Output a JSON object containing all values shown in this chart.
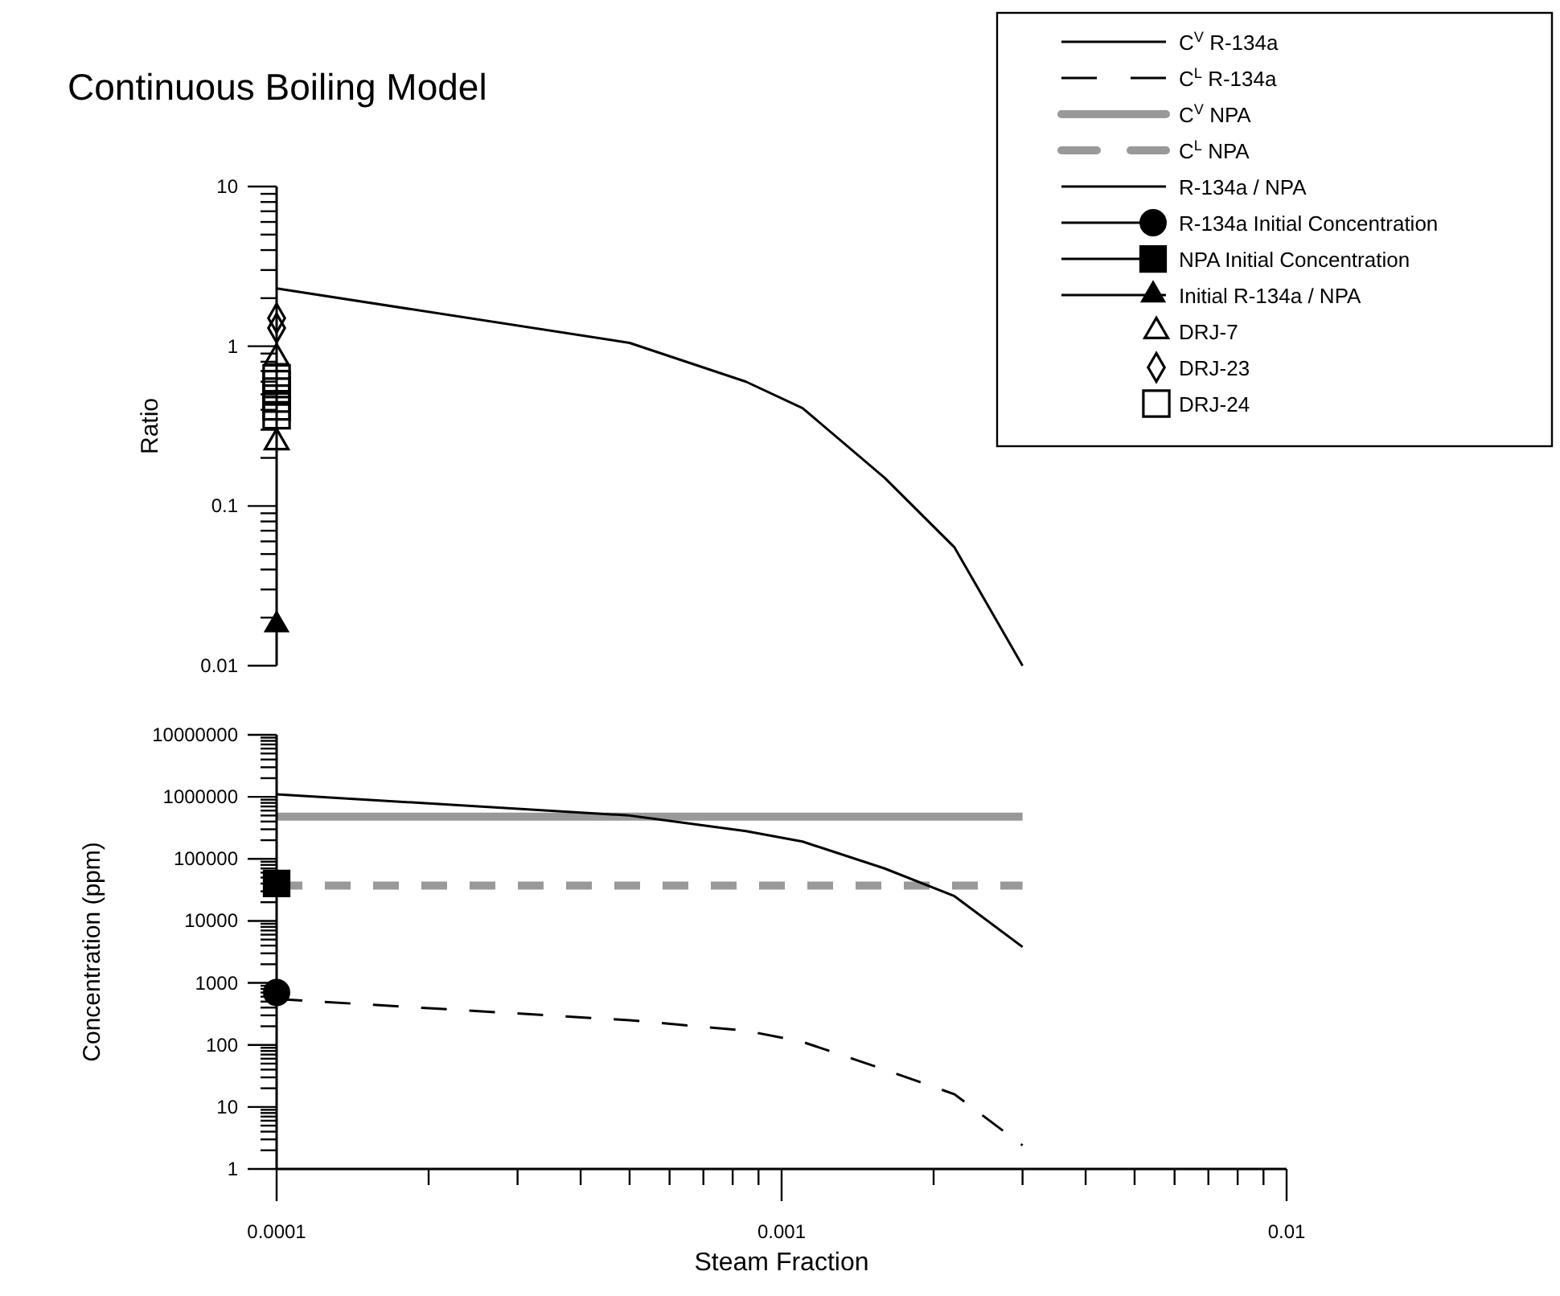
{
  "chart_data": [
    {
      "type": "line",
      "title": "Continuous Boiling Model",
      "ylabel": "Ratio",
      "log": "xy",
      "legend": "top right",
      "tick_labels": "y",
      "marker": "none",
      "line_style": "solid",
      "xlim": [
        0.0001,
        0.01
      ],
      "ylim": [
        0.01,
        10
      ],
      "yticks": [
        0.01,
        {
          "value": 0.02,
          "label": null
        },
        {
          "value": 0.03,
          "label": null
        },
        {
          "value": 0.04,
          "label": null
        },
        {
          "value": 0.05,
          "label": null
        },
        {
          "value": 0.06,
          "label": null
        },
        {
          "value": 0.07,
          "label": null
        },
        {
          "value": 0.08,
          "label": null
        },
        {
          "value": 0.09,
          "label": null
        },
        0.1,
        {
          "value": 0.2,
          "label": null
        },
        {
          "value": 0.3,
          "label": null
        },
        {
          "value": 0.4,
          "label": null
        },
        {
          "value": 0.5,
          "label": null
        },
        {
          "value": 0.6,
          "label": null
        },
        {
          "value": 0.7,
          "label": null
        },
        {
          "value": 0.8,
          "label": null
        },
        {
          "value": 0.9,
          "label": null
        },
        1,
        {
          "value": 2,
          "label": null
        },
        {
          "value": 3,
          "label": null
        },
        {
          "value": 4,
          "label": null
        },
        {
          "value": 5,
          "label": null
        },
        {
          "value": 6,
          "label": null
        },
        {
          "value": 7,
          "label": null
        },
        {
          "value": 8,
          "label": null
        },
        {
          "value": 9,
          "label": null
        },
        10
      ],
      "series": [
        {
          "name": "R-134a / NPA",
          "color": "#000000",
          "x": [
            0.0001,
            0.0005,
            0.00085,
            0.0011,
            0.0016,
            0.0022,
            0.003
          ],
          "values": [
            2.3,
            1.05,
            0.6,
            0.41,
            0.15,
            0.055,
            0.01
          ]
        },
        {
          "name": "Initial R-134a / NPA",
          "marker": "triangle",
          "color": "#000000",
          "x": [
            0.0001
          ],
          "values": [
            0.018
          ]
        },
        {
          "name": "DRJ-7",
          "type": "scatter",
          "marker": "triangle",
          "color": "#000000",
          "x": [
            0.0001,
            0.0001
          ],
          "values": [
            0.25,
            0.85
          ]
        },
        {
          "name": "DRJ-23",
          "type": "scatter",
          "marker": "diamond",
          "color": "#000000",
          "x": [
            0.0001,
            0.0001
          ],
          "values": [
            1.3,
            1.5
          ]
        },
        {
          "name": "DRJ-24",
          "type": "scatter",
          "marker": "square",
          "color": "#000000",
          "x": [
            0.0001,
            0.0001,
            0.0001,
            0.0001,
            0.0001,
            0.0001
          ],
          "values": [
            0.37,
            0.42,
            0.47,
            0.52,
            0.58,
            0.63
          ]
        }
      ]
    },
    {
      "type": "line",
      "xlabel": "Steam Fraction",
      "ylabel": "Concentration (ppm)",
      "log": "xy",
      "legend": "top right",
      "marker": "none",
      "xlim": [
        0.0001,
        0.01
      ],
      "xticks": [
        0.0001,
        {
          "value": 0.0002,
          "label": null
        },
        {
          "value": 0.0003,
          "label": null
        },
        {
          "value": 0.0004,
          "label": null
        },
        {
          "value": 0.0005,
          "label": null
        },
        {
          "value": 0.0006,
          "label": null
        },
        {
          "value": 0.0007,
          "label": null
        },
        {
          "value": 0.0008,
          "label": null
        },
        {
          "value": 0.0009,
          "label": null
        },
        0.001,
        {
          "value": 0.002,
          "label": null
        },
        {
          "value": 0.003,
          "label": null
        },
        {
          "value": 0.004,
          "label": null
        },
        {
          "value": 0.005,
          "label": null
        },
        {
          "value": 0.006,
          "label": null
        },
        {
          "value": 0.007,
          "label": null
        },
        {
          "value": 0.008,
          "label": null
        },
        {
          "value": 0.009,
          "label": null
        },
        0.01
      ],
      "ylim": [
        1,
        10000000
      ],
      "yticks": [
        1,
        {
          "value": 2,
          "label": null
        },
        {
          "value": 3,
          "label": null
        },
        {
          "value": 4,
          "label": null
        },
        {
          "value": 5,
          "label": null
        },
        {
          "value": 6,
          "label": null
        },
        {
          "value": 7,
          "label": null
        },
        {
          "value": 8,
          "label": null
        },
        {
          "value": 9,
          "label": null
        },
        10,
        {
          "value": 20,
          "label": null
        },
        {
          "value": 30,
          "label": null
        },
        {
          "value": 40,
          "label": null
        },
        {
          "value": 50,
          "label": null
        },
        {
          "value": 60,
          "label": null
        },
        {
          "value": 70,
          "label": null
        },
        {
          "value": 80,
          "label": null
        },
        {
          "value": 90,
          "label": null
        },
        100,
        {
          "value": 200,
          "label": null
        },
        {
          "value": 300,
          "label": null
        },
        {
          "value": 400,
          "label": null
        },
        {
          "value": 500,
          "label": null
        },
        {
          "value": 600,
          "label": null
        },
        {
          "value": 700,
          "label": null
        },
        {
          "value": 800,
          "label": null
        },
        {
          "value": 900,
          "label": null
        },
        1000,
        {
          "value": 2000,
          "label": null
        },
        {
          "value": 3000,
          "label": null
        },
        {
          "value": 4000,
          "label": null
        },
        {
          "value": 5000,
          "label": null
        },
        {
          "value": 6000,
          "label": null
        },
        {
          "value": 7000,
          "label": null
        },
        {
          "value": 8000,
          "label": null
        },
        {
          "value": 9000,
          "label": null
        },
        10000,
        {
          "value": 20000,
          "label": null
        },
        {
          "value": 30000,
          "label": null
        },
        {
          "value": 40000,
          "label": null
        },
        {
          "value": 50000,
          "label": null
        },
        {
          "value": 60000,
          "label": null
        },
        {
          "value": 70000,
          "label": null
        },
        {
          "value": 80000,
          "label": null
        },
        {
          "value": 90000,
          "label": null
        },
        100000,
        {
          "value": 200000,
          "label": null
        },
        {
          "value": 300000,
          "label": null
        },
        {
          "value": 400000,
          "label": null
        },
        {
          "value": 500000,
          "label": null
        },
        {
          "value": 600000,
          "label": null
        },
        {
          "value": 700000,
          "label": null
        },
        {
          "value": 800000,
          "label": null
        },
        {
          "value": 900000,
          "label": null
        },
        1000000,
        {
          "value": 2000000,
          "label": null
        },
        {
          "value": 3000000,
          "label": null
        },
        {
          "value": 4000000,
          "label": null
        },
        {
          "value": 5000000,
          "label": null
        },
        {
          "value": 6000000,
          "label": null
        },
        {
          "value": 7000000,
          "label": null
        },
        {
          "value": 8000000,
          "label": null
        },
        {
          "value": 9000000,
          "label": null
        },
        10000000
      ],
      "series": [
        {
          "name": "C$^{V}$ R-134a",
          "line_style": "solid",
          "color": "#000000",
          "x": [
            0.0001,
            0.0005,
            0.00085,
            0.0011,
            0.0016,
            0.0022,
            0.003
          ],
          "values": [
            1100000,
            500000,
            280000,
            190000,
            70000,
            25000,
            3800
          ]
        },
        {
          "name": "C$^{L}$ R-134a",
          "line_style": "dashed",
          "color": "#000000",
          "x": [
            0.0001,
            0.0005,
            0.00085,
            0.0011,
            0.0016,
            0.0022,
            0.003
          ],
          "values": [
            550,
            250,
            170,
            112,
            40,
            16,
            2.4
          ]
        },
        {
          "name": "C$^{V}$ NPA",
          "line_style": "solid",
          "color": "#999999",
          "x": [
            0.0001,
            0.003
          ],
          "values": [
            480000,
            480000
          ]
        },
        {
          "name": "C$^{L}$ NPA",
          "line_style": "dashed",
          "color": "#999999",
          "x": [
            0.0001,
            0.003
          ],
          "values": [
            37000,
            37000
          ]
        },
        {
          "name": "R-134a Initial Concentration",
          "marker": "circle",
          "color": "#000000",
          "x": [
            0.0001
          ],
          "values": [
            700
          ]
        },
        {
          "name": "NPA Initial Concentration",
          "marker": "square",
          "color": "#000000",
          "x": [
            0.0001
          ],
          "values": [
            40000
          ]
        }
      ]
    }
  ]
}
